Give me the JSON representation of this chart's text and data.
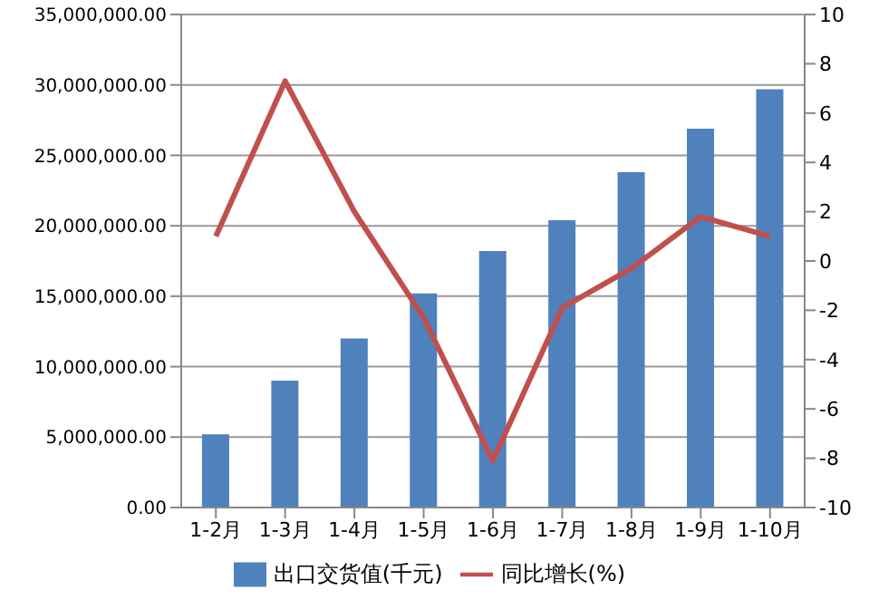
{
  "chart_data": {
    "type": "bar",
    "categories": [
      "1-2月",
      "1-3月",
      "1-4月",
      "1-5月",
      "1-6月",
      "1-7月",
      "1-8月",
      "1-9月",
      "1-10月"
    ],
    "series": [
      {
        "name": "出口交货值(千元)",
        "color": "#4f81bd",
        "values": [
          5200000,
          9000000,
          12000000,
          15200000,
          18200000,
          20400000,
          23800000,
          26900000,
          29700000
        ]
      },
      {
        "name": "同比增长(%)",
        "type": "line",
        "axis": "y2",
        "color": "#c0504d",
        "values": [
          1.0,
          7.3,
          2.0,
          -2.3,
          -8.1,
          -1.9,
          -0.3,
          1.8,
          1.0
        ]
      }
    ],
    "ylim": [
      0,
      35000000
    ],
    "yticks": [
      {
        "value": 0,
        "label": "0.00"
      },
      {
        "value": 5000000,
        "label": "5,000,000.00"
      },
      {
        "value": 10000000,
        "label": "10,000,000.00"
      },
      {
        "value": 15000000,
        "label": "15,000,000.00"
      },
      {
        "value": 20000000,
        "label": "20,000,000.00"
      },
      {
        "value": 25000000,
        "label": "25,000,000.00"
      },
      {
        "value": 30000000,
        "label": "30,000,000.00"
      },
      {
        "value": 35000000,
        "label": "35,000,000.00"
      }
    ],
    "y2lim": [
      -10,
      10
    ],
    "y2ticks": [
      -10,
      -8,
      -6,
      -4,
      -2,
      0,
      2,
      4,
      6,
      8,
      10
    ],
    "grid": "y",
    "legend": "bottom",
    "marker": "none"
  }
}
